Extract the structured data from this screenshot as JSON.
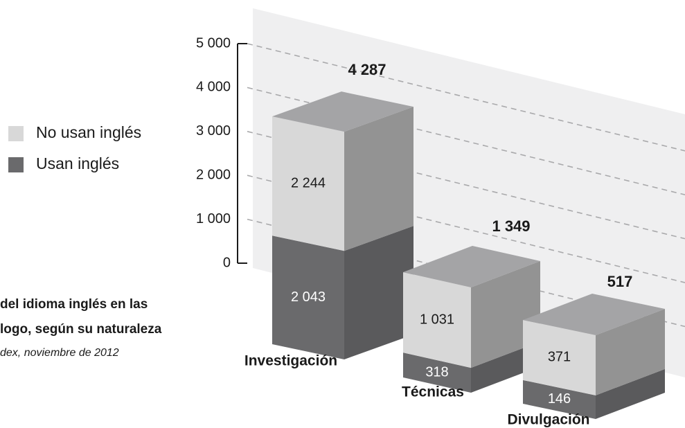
{
  "chart_data": {
    "type": "bar3d_stacked",
    "title": [
      "del idioma inglés en las",
      "logo, según su naturaleza"
    ],
    "source": "dex, noviembre de 2012",
    "categories": [
      "Investigación",
      "Técnicas",
      "Divulgación"
    ],
    "series": [
      {
        "name": "Usan inglés",
        "color": "#6a6a6c",
        "values": [
          2043,
          318,
          146
        ],
        "value_labels": [
          "2 043",
          "318",
          "146"
        ]
      },
      {
        "name": "No usan inglés",
        "color": "#d8d8d8",
        "values": [
          2244,
          1031,
          371
        ],
        "value_labels": [
          "2 244",
          "1 031",
          "371"
        ]
      }
    ],
    "totals": [
      4287,
      1349,
      517
    ],
    "total_labels": [
      "4 287",
      "1 349",
      "517"
    ],
    "ylim": [
      0,
      5000
    ],
    "yticks": [
      0,
      {
        "value": 1000,
        "label": "1 000"
      },
      {
        "value": 2000,
        "label": "2 000"
      },
      {
        "value": 3000,
        "label": "3 000"
      },
      {
        "value": 4000,
        "label": "4 000"
      },
      {
        "value": 5000,
        "label": "5 000"
      }
    ],
    "grid": true
  }
}
